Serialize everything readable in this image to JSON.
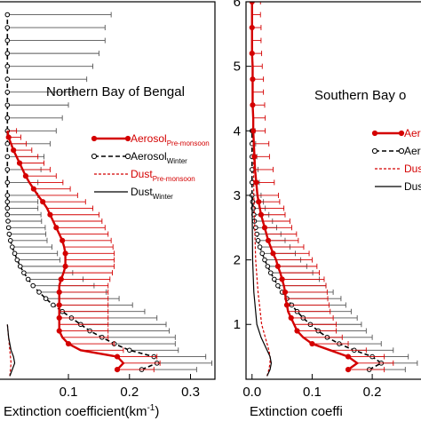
{
  "colors": {
    "red": "#d40000",
    "black": "#000000",
    "grey_bar": "#555555"
  },
  "chart_data": [
    {
      "type": "line",
      "title": "Northern Bay of Bengal",
      "xlabel": "Extinction coefficient(km",
      "xlabel_sup": "-1",
      "xlabel_close": ")",
      "ylabel": "",
      "xlim": [
        -0.015,
        0.34
      ],
      "ylim": [
        0.15,
        6.0
      ],
      "xticks": [
        {
          "v": 0.1,
          "label": "0.1"
        },
        {
          "v": 0.2,
          "label": "0.2"
        },
        {
          "v": 0.3,
          "label": "0.3"
        }
      ],
      "yticks": [],
      "legend": "right",
      "legend_entries": [
        {
          "key": "aerosol_pre",
          "main": "Aerosol",
          "sub": "Pre-monsoon"
        },
        {
          "key": "aerosol_win",
          "main": "Aerosol",
          "sub": "Winter"
        },
        {
          "key": "dust_pre",
          "main": "Dust",
          "sub": "Pre-monsoon"
        },
        {
          "key": "dust_win",
          "main": "Dust",
          "sub": "Winter"
        }
      ],
      "series": [
        {
          "key": "aerosol_win",
          "altitude": [
            0.3,
            0.4,
            0.5,
            0.6,
            0.7,
            0.8,
            0.9,
            1.0,
            1.1,
            1.2,
            1.3,
            1.4,
            1.5,
            1.6,
            1.7,
            1.8,
            1.9,
            2.0,
            2.1,
            2.2,
            2.3,
            2.4,
            2.5,
            2.6,
            2.7,
            2.8,
            2.9,
            3.0,
            3.2,
            3.4,
            3.6,
            3.8,
            4.0,
            4.2,
            4.4,
            4.6,
            4.8,
            5.0,
            5.2,
            5.4,
            5.6,
            5.8
          ],
          "values": [
            0.22,
            0.245,
            0.24,
            0.2,
            0.175,
            0.155,
            0.135,
            0.12,
            0.105,
            0.09,
            0.075,
            0.063,
            0.052,
            0.042,
            0.034,
            0.027,
            0.021,
            0.016,
            0.012,
            0.008,
            0.005,
            0.003,
            0.002,
            0.001,
            0.0,
            0.0,
            0.0,
            0.0,
            0.0,
            0.0,
            0.0,
            0.0,
            0.0,
            0.0,
            0.0,
            0.0,
            0.0,
            0.0,
            0.0,
            0.0,
            0.0,
            0.0
          ],
          "errors": [
            0.09,
            0.09,
            0.085,
            0.08,
            0.1,
            0.12,
            0.13,
            0.14,
            0.14,
            0.135,
            0.13,
            0.12,
            0.11,
            0.1,
            0.09,
            0.08,
            0.075,
            0.07,
            0.07,
            0.065,
            0.06,
            0.06,
            0.06,
            0.055,
            0.055,
            0.05,
            0.05,
            0.05,
            0.05,
            0.055,
            0.06,
            0.07,
            0.08,
            0.09,
            0.1,
            0.11,
            0.13,
            0.14,
            0.15,
            0.16,
            0.16,
            0.17
          ]
        },
        {
          "key": "aerosol_pre",
          "altitude": [
            0.3,
            0.4,
            0.5,
            0.6,
            0.7,
            0.8,
            0.9,
            1.0,
            1.1,
            1.2,
            1.3,
            1.4,
            1.5,
            1.6,
            1.7,
            1.8,
            1.9,
            2.0,
            2.1,
            2.2,
            2.3,
            2.4,
            2.5,
            2.6,
            2.7,
            2.8,
            2.9,
            3.0,
            3.1,
            3.2,
            3.3,
            3.4,
            3.5,
            3.6,
            3.7,
            3.8,
            3.9,
            4.0
          ],
          "values": [
            0.18,
            0.19,
            0.18,
            0.12,
            0.1,
            0.09,
            0.085,
            0.085,
            0.085,
            0.085,
            0.085,
            0.085,
            0.085,
            0.085,
            0.088,
            0.092,
            0.095,
            0.095,
            0.095,
            0.093,
            0.09,
            0.085,
            0.08,
            0.075,
            0.07,
            0.065,
            0.058,
            0.05,
            0.043,
            0.036,
            0.03,
            0.025,
            0.02,
            0.015,
            0.01,
            0.006,
            0.002,
            0.0
          ],
          "errors": [
            0.06,
            0.06,
            0.065,
            0.07,
            0.075,
            0.075,
            0.08,
            0.08,
            0.08,
            0.08,
            0.08,
            0.08,
            0.08,
            0.08,
            0.08,
            0.08,
            0.08,
            0.08,
            0.08,
            0.08,
            0.08,
            0.08,
            0.08,
            0.08,
            0.08,
            0.075,
            0.07,
            0.065,
            0.06,
            0.055,
            0.05,
            0.045,
            0.04,
            0.035,
            0.03,
            0.025,
            0.02,
            0.015
          ]
        },
        {
          "key": "dust_pre",
          "altitude": [
            0.2,
            0.3,
            0.4,
            0.5,
            0.6,
            0.8,
            1.0
          ],
          "values": [
            0.004,
            0.005,
            0.006,
            0.005,
            0.004,
            0.002,
            0.0
          ],
          "errors": []
        },
        {
          "key": "dust_win",
          "altitude": [
            0.2,
            0.3,
            0.4,
            0.5,
            0.6,
            0.8,
            1.0
          ],
          "values": [
            0.004,
            0.008,
            0.012,
            0.01,
            0.006,
            0.002,
            0.0
          ],
          "errors": []
        }
      ]
    },
    {
      "type": "line",
      "title": "Southern Bay o",
      "xlabel": "Extinction coeffi",
      "xlabel_sup": "",
      "xlabel_close": "",
      "ylabel": "",
      "xlim": [
        -0.01,
        0.29
      ],
      "ylim": [
        0.15,
        6.0
      ],
      "xticks": [
        {
          "v": 0.0,
          "label": "0.0"
        },
        {
          "v": 0.1,
          "label": "0.1"
        },
        {
          "v": 0.2,
          "label": "0.2"
        }
      ],
      "yticks": [
        {
          "v": 1,
          "label": "1"
        },
        {
          "v": 2,
          "label": "2"
        },
        {
          "v": 3,
          "label": "3"
        },
        {
          "v": 4,
          "label": "4"
        },
        {
          "v": 5,
          "label": "5"
        },
        {
          "v": 6,
          "label": "6"
        }
      ],
      "legend": "right",
      "legend_entries": [
        {
          "key": "aerosol_pre",
          "main": "Aero",
          "sub": ""
        },
        {
          "key": "aerosol_win",
          "main": "Aero",
          "sub": ""
        },
        {
          "key": "dust_pre",
          "main": "Dust",
          "sub": ""
        },
        {
          "key": "dust_win",
          "main": "Dust",
          "sub": ""
        }
      ],
      "series": [
        {
          "key": "aerosol_win",
          "altitude": [
            0.3,
            0.4,
            0.5,
            0.6,
            0.7,
            0.8,
            0.9,
            1.0,
            1.1,
            1.2,
            1.3,
            1.4,
            1.5,
            1.6,
            1.7,
            1.8,
            1.9,
            2.0,
            2.1,
            2.2,
            2.3,
            2.4,
            2.5,
            2.6,
            2.7,
            2.8,
            2.9,
            3.0,
            3.2,
            3.4,
            3.6,
            3.8,
            4.0
          ],
          "values": [
            0.195,
            0.215,
            0.2,
            0.17,
            0.145,
            0.125,
            0.11,
            0.097,
            0.085,
            0.075,
            0.066,
            0.058,
            0.05,
            0.043,
            0.037,
            0.031,
            0.026,
            0.021,
            0.017,
            0.013,
            0.01,
            0.008,
            0.006,
            0.004,
            0.003,
            0.002,
            0.001,
            0.0,
            0.0,
            0.0,
            0.0,
            0.0,
            0.0
          ],
          "errors": [
            0.06,
            0.06,
            0.06,
            0.065,
            0.07,
            0.075,
            0.08,
            0.085,
            0.09,
            0.09,
            0.09,
            0.09,
            0.085,
            0.08,
            0.075,
            0.07,
            0.065,
            0.06,
            0.055,
            0.05,
            0.045,
            0.04,
            0.035,
            0.03,
            0.025,
            0.02,
            0.018,
            0.015,
            0.012,
            0.01,
            0.008,
            0.006,
            0.005
          ]
        },
        {
          "key": "aerosol_pre",
          "altitude": [
            0.3,
            0.4,
            0.5,
            0.6,
            0.7,
            0.8,
            0.9,
            1.0,
            1.1,
            1.2,
            1.3,
            1.4,
            1.5,
            1.6,
            1.7,
            1.8,
            1.9,
            2.0,
            2.1,
            2.2,
            2.3,
            2.4,
            2.5,
            2.6,
            2.7,
            2.8,
            2.9,
            3.0,
            3.2,
            3.4,
            3.6,
            3.8,
            4.0,
            4.2,
            4.4,
            4.6,
            4.8,
            5.0,
            5.2,
            5.4,
            5.6,
            5.8,
            6.0
          ],
          "values": [
            0.16,
            0.175,
            0.16,
            0.13,
            0.1,
            0.085,
            0.075,
            0.07,
            0.065,
            0.06,
            0.058,
            0.056,
            0.055,
            0.053,
            0.05,
            0.047,
            0.043,
            0.04,
            0.035,
            0.031,
            0.027,
            0.024,
            0.021,
            0.018,
            0.015,
            0.013,
            0.011,
            0.009,
            0.007,
            0.005,
            0.004,
            0.003,
            0.002,
            0.002,
            0.001,
            0.001,
            0.001,
            0.001,
            0.0,
            0.0,
            0.0,
            0.0,
            0.0
          ],
          "errors": [
            0.06,
            0.06,
            0.06,
            0.06,
            0.06,
            0.065,
            0.065,
            0.07,
            0.07,
            0.07,
            0.07,
            0.07,
            0.07,
            0.07,
            0.07,
            0.065,
            0.065,
            0.06,
            0.06,
            0.055,
            0.05,
            0.05,
            0.045,
            0.045,
            0.04,
            0.04,
            0.035,
            0.035,
            0.03,
            0.03,
            0.025,
            0.025,
            0.02,
            0.02,
            0.02,
            0.018,
            0.018,
            0.016,
            0.016,
            0.015,
            0.015,
            0.014,
            0.014
          ]
        },
        {
          "key": "dust_pre",
          "altitude": [
            0.2,
            0.3,
            0.4,
            0.5,
            0.6,
            0.8,
            1.0,
            1.5,
            2.0,
            3.0,
            4.0,
            5.0,
            6.0
          ],
          "values": [
            0.025,
            0.028,
            0.03,
            0.03,
            0.028,
            0.022,
            0.016,
            0.01,
            0.006,
            0.003,
            0.002,
            0.001,
            0.0
          ],
          "errors": []
        },
        {
          "key": "dust_win",
          "altitude": [
            0.2,
            0.3,
            0.4,
            0.5,
            0.6,
            0.8,
            1.0,
            1.5,
            2.0,
            3.0
          ],
          "values": [
            0.025,
            0.03,
            0.032,
            0.03,
            0.025,
            0.015,
            0.008,
            0.003,
            0.001,
            0.0
          ],
          "errors": []
        }
      ]
    }
  ]
}
